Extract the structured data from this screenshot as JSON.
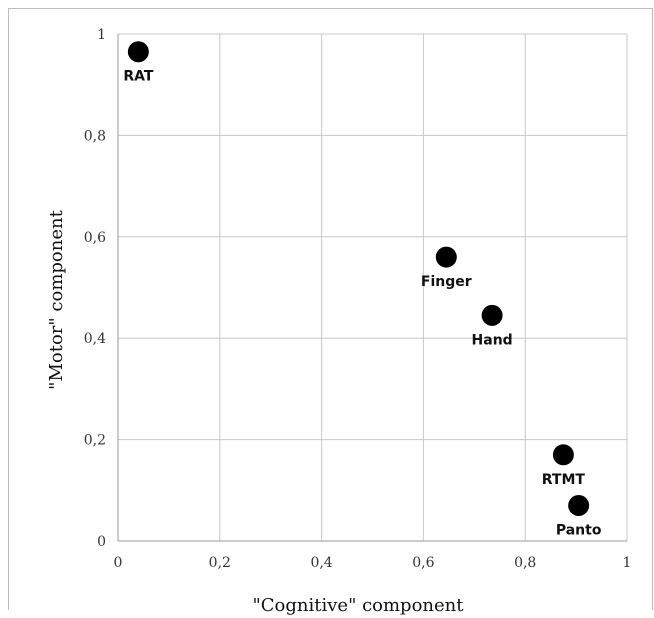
{
  "chart_data": {
    "type": "scatter",
    "xlabel": "\"Cognitive\" component",
    "ylabel": "\"Motor\" component",
    "xlim": [
      0,
      1
    ],
    "ylim": [
      0,
      1
    ],
    "x_ticks": [
      "0",
      "0,2",
      "0,4",
      "0,6",
      "0,8",
      "1"
    ],
    "y_ticks": [
      "0",
      "0,2",
      "0,4",
      "0,6",
      "0,8",
      "1"
    ],
    "grid": true,
    "marker_color": "#000000",
    "grid_color": "#c8c8c8",
    "points": [
      {
        "label": "RAT",
        "x": 0.04,
        "y": 0.965
      },
      {
        "label": "Finger",
        "x": 0.645,
        "y": 0.56
      },
      {
        "label": "Hand",
        "x": 0.735,
        "y": 0.445
      },
      {
        "label": "RTMT",
        "x": 0.875,
        "y": 0.17
      },
      {
        "label": "Panto",
        "x": 0.905,
        "y": 0.07
      }
    ]
  }
}
